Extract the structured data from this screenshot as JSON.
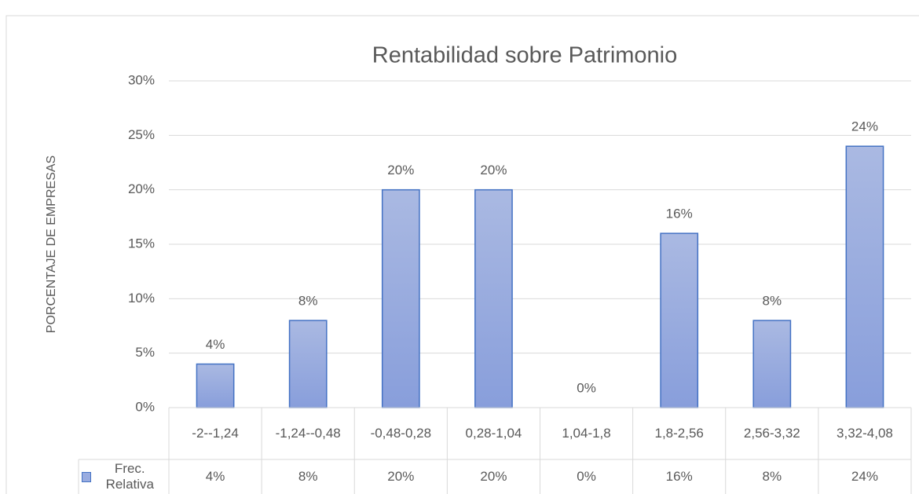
{
  "chart_data": {
    "type": "bar",
    "title": "Rentabilidad sobre Patrimonio",
    "y_label": "PORCENTAJE DE EMPRESAS",
    "categories": [
      "-2--1,24",
      "-1,24--0,48",
      "-0,48-0,28",
      "0,28-1,04",
      "1,04-1,8",
      "1,8-2,56",
      "2,56-3,32",
      "3,32-4,08"
    ],
    "series": [
      {
        "name": "Frec. Relativa",
        "color": "#4472c4",
        "values": [
          4,
          8,
          20,
          20,
          0,
          16,
          8,
          24
        ],
        "value_labels": [
          "4%",
          "8%",
          "20%",
          "20%",
          "0%",
          "16%",
          "8%",
          "24%"
        ]
      }
    ],
    "ylim": [
      0,
      30
    ],
    "yticks": [
      {
        "value": 0,
        "label": "0%"
      },
      {
        "value": 5,
        "label": "5%"
      },
      {
        "value": 10,
        "label": "10%"
      },
      {
        "value": 15,
        "label": "15%"
      },
      {
        "value": 20,
        "label": "20%"
      },
      {
        "value": 25,
        "label": "25%"
      },
      {
        "value": 30,
        "label": "30%"
      }
    ],
    "grid": true
  }
}
